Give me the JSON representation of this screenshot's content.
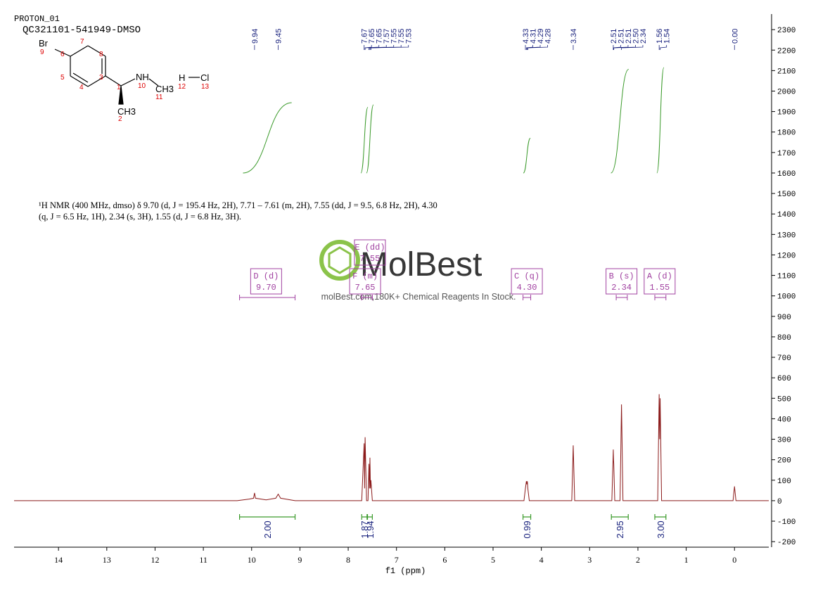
{
  "chart_data": {
    "type": "nmr",
    "title": "PROTON_01",
    "subtitle": "QC321101-541949-DMSO",
    "description": "¹H NMR (400 MHz, dmso) δ 9.70 (d, J = 195.4 Hz, 2H), 7.71 – 7.61 (m, 2H), 7.55 (dd, J = 9.5, 6.8 Hz, 2H), 4.30 (q, J = 6.5 Hz, 1H), 2.34 (s, 3H), 1.55 (d, J = 6.8 Hz, 3H).",
    "watermark": "MolBest",
    "watermark_text": "molBest.com,180K+ Chemical Reagents In Stock.",
    "xlabel": "f1 (ppm)",
    "color": "#8b1a1a",
    "x": [
      14.92,
      10.3,
      10.05,
      9.96,
      9.94,
      9.92,
      9.7,
      9.5,
      9.45,
      9.4,
      9.1,
      7.72,
      7.67,
      7.66,
      7.65,
      7.62,
      7.59,
      7.57,
      7.56,
      7.55,
      7.54,
      7.53,
      7.5,
      4.36,
      4.33,
      4.31,
      4.3,
      4.29,
      4.28,
      4.25,
      3.37,
      3.34,
      3.31,
      2.54,
      2.51,
      2.505,
      2.5,
      2.48,
      2.37,
      2.34,
      2.31,
      1.59,
      1.56,
      1.55,
      1.54,
      1.51,
      0.03,
      0,
      -0.03,
      -0.71
    ],
    "values": [
      0,
      0,
      8,
      12,
      38,
      12,
      4,
      12,
      32,
      12,
      0,
      0,
      280,
      60,
      310,
      0,
      0,
      180,
      60,
      210,
      60,
      100,
      0,
      0,
      60,
      95,
      80,
      95,
      60,
      0,
      0,
      270,
      0,
      0,
      250,
      200,
      180,
      0,
      0,
      470,
      0,
      0,
      520,
      300,
      500,
      0,
      0,
      70,
      0,
      0
    ],
    "xlim": [
      14.92,
      -0.71
    ],
    "xticks": [
      14,
      13,
      12,
      11,
      10,
      9,
      8,
      7,
      6,
      5,
      4,
      3,
      2,
      1,
      0
    ],
    "ylim": [
      -227,
      2376
    ],
    "yticks": [
      -200,
      -100,
      0,
      100,
      200,
      300,
      400,
      500,
      600,
      700,
      800,
      900,
      1000,
      1100,
      1200,
      1300,
      1400,
      1500,
      1600,
      1700,
      1800,
      1900,
      2000,
      2100,
      2200,
      2300
    ],
    "peak_picks": [
      9.94,
      9.45,
      7.67,
      7.65,
      7.65,
      7.57,
      7.55,
      7.55,
      7.53,
      4.33,
      4.31,
      4.29,
      4.28,
      3.34,
      2.51,
      2.51,
      2.51,
      {
        "value": 2.5,
        "label": "2.50"
      },
      2.34,
      1.56,
      1.54,
      {
        "value": 0,
        "label": "0.00"
      }
    ],
    "integrals": {
      "ranges": [
        [
          10.25,
          9.1
        ],
        [
          7.72,
          7.61
        ],
        [
          7.6,
          7.5
        ],
        [
          4.38,
          4.22
        ],
        [
          2.55,
          2.2
        ],
        [
          1.65,
          1.42
        ]
      ],
      "values": [
        2,
        1.87,
        1.94,
        0.99,
        2.95,
        3
      ],
      "value_labels": [
        "2.00",
        "1.87",
        "1.94",
        "0.99",
        "2.95",
        "3.00"
      ]
    },
    "multiplets": {
      "names": [
        "D (d)",
        "F (m)",
        "E (dd)",
        "C (q)",
        "B (s)",
        "A (d)"
      ],
      "values": [
        9.7,
        7.65,
        7.55,
        4.3,
        2.34,
        1.55
      ],
      "value_labels": [
        "9.70",
        "7.65",
        "7.55",
        "4.30",
        "2.34",
        "1.55"
      ],
      "ranges": [
        [
          10.25,
          9.1
        ],
        [
          7.72,
          7.5
        ],
        [
          7.72,
          7.5
        ],
        [
          4.38,
          4.22
        ],
        [
          2.45,
          2.22
        ],
        [
          1.65,
          1.42
        ]
      ]
    },
    "structure": {
      "atoms": [
        "Br",
        "NH",
        "CH3",
        "CH3",
        "H",
        "Cl"
      ],
      "numbers": [
        "1",
        "2",
        "3",
        "4",
        "5",
        "6",
        "7",
        "8",
        "9",
        "10",
        "11",
        "12",
        "13"
      ]
    }
  }
}
